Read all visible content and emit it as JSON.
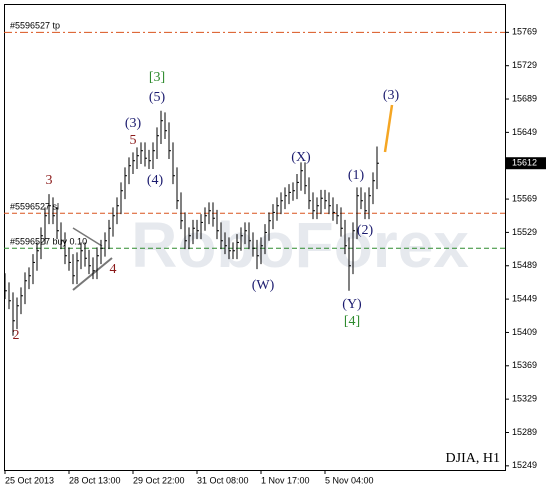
{
  "chart_data": {
    "type": "ohlc",
    "symbol": "DJIA, H1",
    "watermark": "RoboForex",
    "color": "#000000",
    "ylim": [
      15244,
      15803
    ],
    "yticks": [
      15249,
      15289,
      15329,
      15369,
      15409,
      15449,
      15489,
      15529,
      15569,
      15649,
      15689,
      15729,
      15769
    ],
    "xticks": [
      {
        "value": 0,
        "label": "25 Oct 2013"
      },
      {
        "value": 16,
        "label": "28 Oct 13:00"
      },
      {
        "value": 32,
        "label": "29 Oct 22:00"
      },
      {
        "value": 48,
        "label": "31 Oct 08:00"
      },
      {
        "value": 64,
        "label": "1 Nov 17:00"
      },
      {
        "value": 80,
        "label": "5 Nov 04:00"
      }
    ],
    "high": [
      15480,
      15469,
      15457,
      15451,
      15463,
      15481,
      15487,
      15503,
      15517,
      15535,
      15559,
      15575,
      15571,
      15559,
      15541,
      15529,
      15511,
      15503,
      15505,
      15517,
      15517,
      15508,
      15499,
      15511,
      15520,
      15529,
      15544,
      15559,
      15571,
      15589,
      15607,
      15619,
      15625,
      15631,
      15637,
      15637,
      15628,
      15637,
      15655,
      15675,
      15673,
      15661,
      15637,
      15607,
      15577,
      15553,
      15535,
      15544,
      15544,
      15551,
      15559,
      15565,
      15565,
      15556,
      15541,
      15529,
      15523,
      15517,
      15527,
      15535,
      15541,
      15541,
      15529,
      15520,
      15523,
      15539,
      15553,
      15563,
      15571,
      15577,
      15583,
      15587,
      15589,
      15599,
      15613,
      15613,
      15595,
      15577,
      15571,
      15580,
      15580,
      15577,
      15571,
      15563,
      15559,
      15544,
      15523,
      15541,
      15583,
      15583,
      15577,
      15583,
      15601,
      15632
    ],
    "low": [
      15449,
      15437,
      15405,
      15413,
      15431,
      15443,
      15461,
      15467,
      15483,
      15497,
      15515,
      15539,
      15539,
      15521,
      15509,
      15491,
      15483,
      15467,
      15467,
      15485,
      15488,
      15479,
      15473,
      15473,
      15491,
      15500,
      15509,
      15524,
      15539,
      15551,
      15569,
      15587,
      15599,
      15605,
      15611,
      15608,
      15605,
      15605,
      15617,
      15635,
      15641,
      15617,
      15587,
      15557,
      15533,
      15509,
      15509,
      15515,
      15521,
      15521,
      15531,
      15539,
      15536,
      15521,
      15509,
      15503,
      15497,
      15497,
      15497,
      15507,
      15515,
      15509,
      15500,
      15485,
      15491,
      15503,
      15519,
      15533,
      15543,
      15551,
      15557,
      15563,
      15567,
      15569,
      15579,
      15575,
      15557,
      15545,
      15545,
      15551,
      15557,
      15551,
      15543,
      15539,
      15524,
      15503,
      15459,
      15479,
      15521,
      15557,
      15545,
      15545,
      15563,
      15581
    ],
    "close": [
      15459,
      15447,
      15423,
      15441,
      15453,
      15471,
      15477,
      15493,
      15507,
      15525,
      15549,
      15561,
      15549,
      15531,
      15519,
      15501,
      15493,
      15477,
      15495,
      15507,
      15498,
      15489,
      15483,
      15501,
      15510,
      15519,
      15534,
      15549,
      15561,
      15579,
      15597,
      15609,
      15615,
      15621,
      15627,
      15618,
      15615,
      15627,
      15645,
      15663,
      15651,
      15627,
      15597,
      15567,
      15543,
      15519,
      15525,
      15534,
      15531,
      15541,
      15549,
      15555,
      15546,
      15531,
      15519,
      15513,
      15507,
      15507,
      15517,
      15525,
      15531,
      15519,
      15510,
      15501,
      15513,
      15529,
      15543,
      15553,
      15561,
      15567,
      15573,
      15577,
      15579,
      15589,
      15603,
      15585,
      15567,
      15555,
      15561,
      15570,
      15567,
      15561,
      15553,
      15549,
      15534,
      15513,
      15489,
      15531,
      15573,
      15567,
      15555,
      15573,
      15591,
      15612
    ],
    "levels": [
      {
        "label": "#5596527 tp",
        "value": 15769,
        "color": "#d9541e"
      },
      {
        "label": "#5596527 sl",
        "value": 15552,
        "color": "#d9541e"
      },
      {
        "label": "#5596527 buy 0.10",
        "value": 15510,
        "color": "#2e8b2e"
      }
    ],
    "annotations": [
      {
        "text": "[3]",
        "color": "#2e8b2e"
      },
      {
        "text": "(5)",
        "color": "#1a1a6e"
      },
      {
        "text": "(3)",
        "color": "#1a1a6e"
      },
      {
        "text": "5",
        "color": "#8b1a1a"
      },
      {
        "text": "(4)",
        "color": "#1a1a6e"
      },
      {
        "text": "3",
        "color": "#8b1a1a"
      },
      {
        "text": "4",
        "color": "#8b1a1a"
      },
      {
        "text": "2",
        "color": "#8b1a1a"
      },
      {
        "text": "(X)",
        "color": "#1a1a6e"
      },
      {
        "text": "(1)",
        "color": "#1a1a6e"
      },
      {
        "text": "(2)",
        "color": "#1a1a6e"
      },
      {
        "text": "(W)",
        "color": "#1a1a6e"
      },
      {
        "text": "(Y)",
        "color": "#1a1a6e"
      },
      {
        "text": "[4]",
        "color": "#2e8b2e"
      },
      {
        "text": "(3)",
        "color": "#1a1a6e"
      }
    ]
  }
}
